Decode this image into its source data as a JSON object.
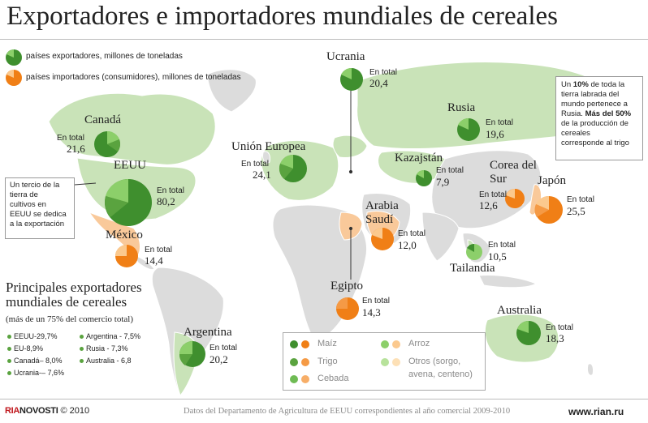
{
  "title": "Exportadores e importadores mundiales de cereales",
  "legend": {
    "exporters": "países exportadores, millones de toneladas",
    "importers": "países importadores (consumidores), millones de toneladas"
  },
  "colors": {
    "land": "#dcdcdc",
    "exporter_land": "#c9e3b8",
    "importer_land": "#f9c99a",
    "green_dark": "#3f8f2e",
    "green_mid": "#5aa33f",
    "green_light": "#8ccf6a",
    "orange_dark": "#f07f16",
    "orange_mid": "#f59a45",
    "orange_light": "#fbc98e"
  },
  "total_label": "En total",
  "countries": [
    {
      "name": "Canadá",
      "value": "21,6",
      "type": "exporter"
    },
    {
      "name": "EEUU",
      "value": "80,2",
      "type": "exporter"
    },
    {
      "name": "México",
      "value": "14,4",
      "type": "importer"
    },
    {
      "name": "Argentina",
      "value": "20,2",
      "type": "exporter"
    },
    {
      "name": "Unión Europea",
      "value": "24,1",
      "type": "exporter"
    },
    {
      "name": "Ucrania",
      "value": "20,4",
      "type": "exporter"
    },
    {
      "name": "Rusia",
      "value": "19,6",
      "type": "exporter"
    },
    {
      "name": "Kazajstán",
      "value": "7,9",
      "type": "exporter"
    },
    {
      "name": "Arabia Saudí",
      "value": "12,0",
      "type": "importer"
    },
    {
      "name": "Egipto",
      "value": "14,3",
      "type": "importer"
    },
    {
      "name": "Corea del Sur",
      "value": "12,6",
      "type": "importer"
    },
    {
      "name": "Japón",
      "value": "25,5",
      "type": "importer"
    },
    {
      "name": "Tailandia",
      "value": "10,5",
      "type": "exporter"
    },
    {
      "name": "Australia",
      "value": "18,3",
      "type": "exporter"
    }
  ],
  "notes": {
    "usa_1": "Un tercio de la",
    "usa_2": "tierra de",
    "usa_3": "cultivos en",
    "usa_4": "EEUU se dedica",
    "usa_5": "a la exportación",
    "russia_1": "Un ",
    "russia_pct": "10%",
    "russia_2": " de toda la",
    "russia_3": "tierra labrada del",
    "russia_4": "mundo pertenece a",
    "russia_5": "Rusia. ",
    "russia_bold": "Más del 50%",
    "russia_6": "de la producción de",
    "russia_7": "cereales",
    "russia_8": "corresponde al trigo"
  },
  "side": {
    "title_1": "Principales exportadores",
    "title_2": "mundiales de cereales",
    "subtitle": "(más de un 75% del comercio total)",
    "items": [
      "EEUU-29,7%",
      "EU-8,9%",
      "Canadá– 8,0%",
      "Ucrania-– 7,6%",
      "Argentina - 7,5%",
      "Rusia - 7,3%",
      "Australia - 6,8"
    ]
  },
  "grain_key": [
    "Maíz",
    "Trigo",
    "Cebada",
    "Arroz",
    "Otros (sorgo,",
    "avena, centeno)"
  ],
  "footer": {
    "brand_a": "RIA",
    "brand_b": "NOVOSTI",
    "copyright": "© 2010",
    "source": "Datos del Departamento de Agricultura de EEUU correspondientes al año comercial 2009-2010",
    "site": "www.rian.ru"
  }
}
